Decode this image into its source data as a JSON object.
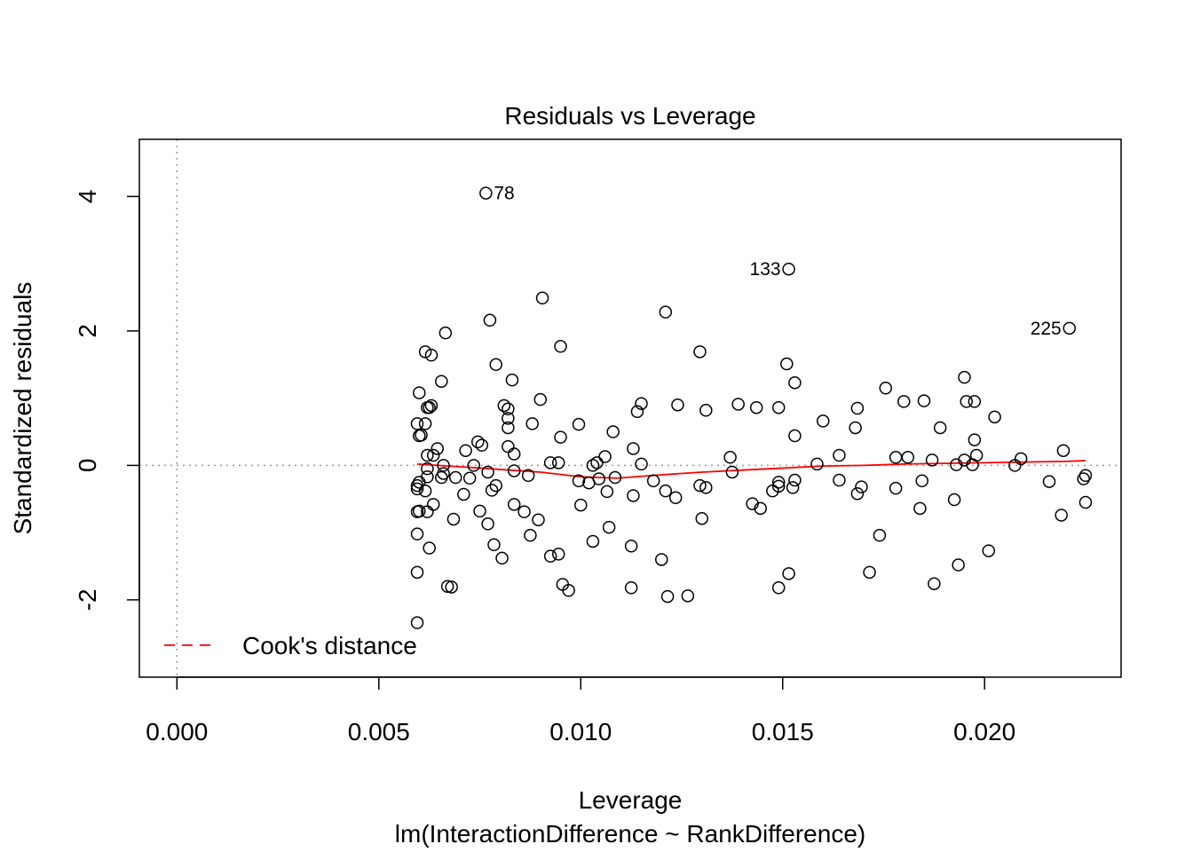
{
  "chart_data": {
    "type": "scatter",
    "title": "Residuals vs Leverage",
    "xlabel": "Leverage",
    "subtitle": "lm(InteractionDifference ~ RankDifference)",
    "ylabel": "Standardized residuals",
    "xlim": [
      -0.00093,
      0.02338
    ],
    "ylim": [
      -3.15,
      4.85
    ],
    "x_ticks": [
      0.0,
      0.005,
      0.01,
      0.015,
      0.02
    ],
    "x_tick_labels": [
      "0.000",
      "0.005",
      "0.010",
      "0.015",
      "0.020"
    ],
    "y_ticks": [
      -2,
      0,
      2,
      4
    ],
    "y_tick_labels": [
      "-2",
      "0",
      "2",
      "4"
    ],
    "legend": {
      "label": "Cook's distance",
      "position": "bottom-left",
      "color": "#ff0000",
      "line": "dashed"
    },
    "reference_lines": {
      "x": 0,
      "y": 0,
      "style": "dotted",
      "color": "#999999"
    },
    "smooth_color": "#ff0000",
    "point_color": "#000000",
    "labeled_points": [
      {
        "label": "78",
        "x": 0.00765,
        "y": 4.05,
        "side": "right"
      },
      {
        "label": "133",
        "x": 0.01515,
        "y": 2.92,
        "side": "left"
      },
      {
        "label": "225",
        "x": 0.0221,
        "y": 2.04,
        "side": "left"
      }
    ],
    "points": [
      [
        0.00765,
        4.05
      ],
      [
        0.01515,
        2.92
      ],
      [
        0.0221,
        2.04
      ],
      [
        0.00905,
        2.49
      ],
      [
        0.0121,
        2.28
      ],
      [
        0.00775,
        2.16
      ],
      [
        0.00665,
        1.97
      ],
      [
        0.0095,
        1.77
      ],
      [
        0.00615,
        1.69
      ],
      [
        0.0063,
        1.64
      ],
      [
        0.01295,
        1.69
      ],
      [
        0.0079,
        1.5
      ],
      [
        0.0151,
        1.51
      ],
      [
        0.00655,
        1.25
      ],
      [
        0.0083,
        1.27
      ],
      [
        0.0195,
        1.31
      ],
      [
        0.0153,
        1.23
      ],
      [
        0.01755,
        1.15
      ],
      [
        0.006,
        1.08
      ],
      [
        0.009,
        0.98
      ],
      [
        0.0124,
        0.9
      ],
      [
        0.0139,
        0.91
      ],
      [
        0.0185,
        0.96
      ],
      [
        0.01955,
        0.95
      ],
      [
        0.01975,
        0.95
      ],
      [
        0.018,
        0.95
      ],
      [
        0.0063,
        0.89
      ],
      [
        0.0062,
        0.86
      ],
      [
        0.0081,
        0.89
      ],
      [
        0.0115,
        0.92
      ],
      [
        0.01435,
        0.86
      ],
      [
        0.0149,
        0.86
      ],
      [
        0.01685,
        0.85
      ],
      [
        0.00625,
        0.86
      ],
      [
        0.0082,
        0.84
      ],
      [
        0.0114,
        0.8
      ],
      [
        0.0131,
        0.82
      ],
      [
        0.02025,
        0.72
      ],
      [
        0.0082,
        0.7
      ],
      [
        0.016,
        0.66
      ],
      [
        0.00595,
        0.62
      ],
      [
        0.00615,
        0.62
      ],
      [
        0.0088,
        0.62
      ],
      [
        0.00995,
        0.61
      ],
      [
        0.0168,
        0.56
      ],
      [
        0.0189,
        0.56
      ],
      [
        0.0082,
        0.56
      ],
      [
        0.0108,
        0.5
      ],
      [
        0.006,
        0.44
      ],
      [
        0.00605,
        0.45
      ],
      [
        0.0095,
        0.42
      ],
      [
        0.0153,
        0.44
      ],
      [
        0.01975,
        0.38
      ],
      [
        0.00745,
        0.35
      ],
      [
        0.00755,
        0.3
      ],
      [
        0.0082,
        0.28
      ],
      [
        0.00645,
        0.25
      ],
      [
        0.00715,
        0.22
      ],
      [
        0.0113,
        0.25
      ],
      [
        0.02195,
        0.22
      ],
      [
        0.0062,
        0.15
      ],
      [
        0.00835,
        0.17
      ],
      [
        0.0198,
        0.15
      ],
      [
        0.00635,
        0.15
      ],
      [
        0.0106,
        0.13
      ],
      [
        0.0164,
        0.15
      ],
      [
        0.0137,
        0.12
      ],
      [
        0.0178,
        0.12
      ],
      [
        0.0181,
        0.12
      ],
      [
        0.0209,
        0.1
      ],
      [
        0.00925,
        0.04
      ],
      [
        0.00945,
        0.04
      ],
      [
        0.0104,
        0.04
      ],
      [
        0.0115,
        0.02
      ],
      [
        0.01585,
        0.02
      ],
      [
        0.0187,
        0.08
      ],
      [
        0.0195,
        0.08
      ],
      [
        0.0193,
        0.01
      ],
      [
        0.0197,
        0.01
      ],
      [
        0.02075,
        0.0
      ],
      [
        0.0066,
        0.0
      ],
      [
        0.00735,
        0.0
      ],
      [
        0.0103,
        0.0
      ],
      [
        0.0062,
        -0.05
      ],
      [
        0.00835,
        -0.08
      ],
      [
        0.0077,
        -0.1
      ],
      [
        0.01375,
        -0.1
      ],
      [
        0.0066,
        -0.12
      ],
      [
        0.0087,
        -0.15
      ],
      [
        0.0062,
        -0.17
      ],
      [
        0.00655,
        -0.18
      ],
      [
        0.0069,
        -0.18
      ],
      [
        0.00725,
        -0.19
      ],
      [
        0.01085,
        -0.18
      ],
      [
        0.01045,
        -0.2
      ],
      [
        0.00995,
        -0.23
      ],
      [
        0.0102,
        -0.26
      ],
      [
        0.0153,
        -0.22
      ],
      [
        0.0149,
        -0.25
      ],
      [
        0.0118,
        -0.23
      ],
      [
        0.0164,
        -0.22
      ],
      [
        0.01845,
        -0.23
      ],
      [
        0.0216,
        -0.24
      ],
      [
        0.0225,
        -0.15
      ],
      [
        0.02245,
        -0.2
      ],
      [
        0.006,
        -0.25
      ],
      [
        0.00595,
        -0.3
      ],
      [
        0.0079,
        -0.3
      ],
      [
        0.01295,
        -0.3
      ],
      [
        0.0131,
        -0.33
      ],
      [
        0.0149,
        -0.31
      ],
      [
        0.01525,
        -0.33
      ],
      [
        0.01695,
        -0.32
      ],
      [
        0.0178,
        -0.34
      ],
      [
        0.00595,
        -0.35
      ],
      [
        0.0078,
        -0.37
      ],
      [
        0.00615,
        -0.38
      ],
      [
        0.0121,
        -0.38
      ],
      [
        0.01475,
        -0.38
      ],
      [
        0.01065,
        -0.39
      ],
      [
        0.0071,
        -0.43
      ],
      [
        0.01685,
        -0.42
      ],
      [
        0.0113,
        -0.45
      ],
      [
        0.01235,
        -0.48
      ],
      [
        0.01925,
        -0.51
      ],
      [
        0.0225,
        -0.55
      ],
      [
        0.00635,
        -0.58
      ],
      [
        0.00835,
        -0.58
      ],
      [
        0.01,
        -0.59
      ],
      [
        0.01425,
        -0.57
      ],
      [
        0.01445,
        -0.64
      ],
      [
        0.006,
        -0.68
      ],
      [
        0.00595,
        -0.69
      ],
      [
        0.0062,
        -0.69
      ],
      [
        0.0075,
        -0.68
      ],
      [
        0.0086,
        -0.69
      ],
      [
        0.0184,
        -0.64
      ],
      [
        0.0219,
        -0.74
      ],
      [
        0.00685,
        -0.8
      ],
      [
        0.00895,
        -0.81
      ],
      [
        0.013,
        -0.79
      ],
      [
        0.0077,
        -0.87
      ],
      [
        0.0107,
        -0.92
      ],
      [
        0.00875,
        -1.04
      ],
      [
        0.00595,
        -1.02
      ],
      [
        0.0174,
        -1.04
      ],
      [
        0.0103,
        -1.13
      ],
      [
        0.00785,
        -1.18
      ],
      [
        0.01125,
        -1.2
      ],
      [
        0.00625,
        -1.23
      ],
      [
        0.0201,
        -1.27
      ],
      [
        0.00925,
        -1.35
      ],
      [
        0.00945,
        -1.32
      ],
      [
        0.00805,
        -1.38
      ],
      [
        0.012,
        -1.4
      ],
      [
        0.01935,
        -1.48
      ],
      [
        0.00595,
        -1.59
      ],
      [
        0.01715,
        -1.59
      ],
      [
        0.01515,
        -1.61
      ],
      [
        0.00955,
        -1.77
      ],
      [
        0.0097,
        -1.86
      ],
      [
        0.0067,
        -1.8
      ],
      [
        0.0068,
        -1.81
      ],
      [
        0.01125,
        -1.82
      ],
      [
        0.0149,
        -1.82
      ],
      [
        0.01875,
        -1.76
      ],
      [
        0.01215,
        -1.95
      ],
      [
        0.01265,
        -1.94
      ],
      [
        0.00595,
        -2.34
      ]
    ],
    "smooth_line": [
      [
        0.00595,
        0.02
      ],
      [
        0.007,
        -0.02
      ],
      [
        0.008,
        -0.06
      ],
      [
        0.009,
        -0.1
      ],
      [
        0.01,
        -0.17
      ],
      [
        0.0109,
        -0.19
      ],
      [
        0.012,
        -0.14
      ],
      [
        0.013,
        -0.1
      ],
      [
        0.014,
        -0.07
      ],
      [
        0.015,
        -0.04
      ],
      [
        0.016,
        -0.01
      ],
      [
        0.017,
        0.0
      ],
      [
        0.018,
        0.02
      ],
      [
        0.019,
        0.03
      ],
      [
        0.02,
        0.04
      ],
      [
        0.021,
        0.05
      ],
      [
        0.022,
        0.06
      ],
      [
        0.0225,
        0.07
      ]
    ]
  }
}
